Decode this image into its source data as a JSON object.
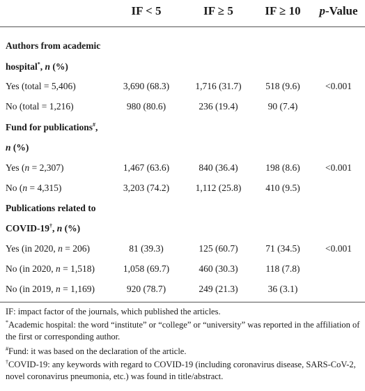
{
  "header": {
    "col1": "IF < 5",
    "col2": "IF ≥ 5",
    "col3": "IF ≥ 10",
    "col4_italic": "p",
    "col4_rest": "-Value"
  },
  "sections": [
    {
      "title_line1": "Authors from academic",
      "title_line2_a": "hospital",
      "title_line2_sup": "*",
      "title_line2_b": ", ",
      "title_line2_n": "n",
      "title_line2_c": " (%)",
      "rows": [
        {
          "label": "Yes (total = 5,406)",
          "c1": "3,690 (68.3)",
          "c2": "1,716 (31.7)",
          "c3": "518 (9.6)",
          "p": "<0.001"
        },
        {
          "label": "No (total = 1,216)",
          "c1": "980 (80.6)",
          "c2": "236 (19.4)",
          "c3": "90 (7.4)",
          "p": ""
        }
      ]
    },
    {
      "title_line1_a": "Fund for publications",
      "title_line1_sup": "#",
      "title_line1_b": ",",
      "title_line2_n": "n",
      "title_line2_c": " (%)",
      "rows": [
        {
          "label_a": "Yes (",
          "label_n": "n",
          "label_b": " = 2,307)",
          "c1": "1,467 (63.6)",
          "c2": "840 (36.4)",
          "c3": "198 (8.6)",
          "p": "<0.001"
        },
        {
          "label_a": "No (",
          "label_n": "n",
          "label_b": " = 4,315)",
          "c1": "3,203 (74.2)",
          "c2": "1,112 (25.8)",
          "c3": "410 (9.5)",
          "p": ""
        }
      ]
    },
    {
      "title_line1": "Publications related to",
      "title_line2_a": "COVID-19",
      "title_line2_sup": "†",
      "title_line2_b": ", ",
      "title_line2_n": "n",
      "title_line2_c": " (%)",
      "rows": [
        {
          "label_a": "Yes (in 2020, ",
          "label_n": "n",
          "label_b": " = 206)",
          "c1": "81 (39.3)",
          "c2": "125 (60.7)",
          "c3": "71 (34.5)",
          "p": "<0.001"
        },
        {
          "label_a": "No (in 2020, ",
          "label_n": "n",
          "label_b": " = 1,518)",
          "c1": "1,058 (69.7)",
          "c2": "460 (30.3)",
          "c3": "118 (7.8)",
          "p": ""
        },
        {
          "label_a": "No (in 2019, ",
          "label_n": "n",
          "label_b": " = 1,169)",
          "c1": "920 (78.7)",
          "c2": "249 (21.3)",
          "c3": "36 (3.1)",
          "p": ""
        }
      ]
    }
  ],
  "footnotes": {
    "if_note": "IF: impact factor of the journals, which published the articles.",
    "star_mark": "*",
    "star_note": "Academic hospital: the word “institute” or “college” or “university” was reported in the affiliation of the first or corresponding author.",
    "hash_mark": "#",
    "hash_note": "Fund: it was based on the declaration of the article.",
    "dagger_mark": "†",
    "dagger_note": "COVID-19: any keywords with regard to COVID-19 (including coronavirus disease, SARS-CoV-2, novel coronavirus pneumonia, etc.) was found in title/abstract."
  }
}
